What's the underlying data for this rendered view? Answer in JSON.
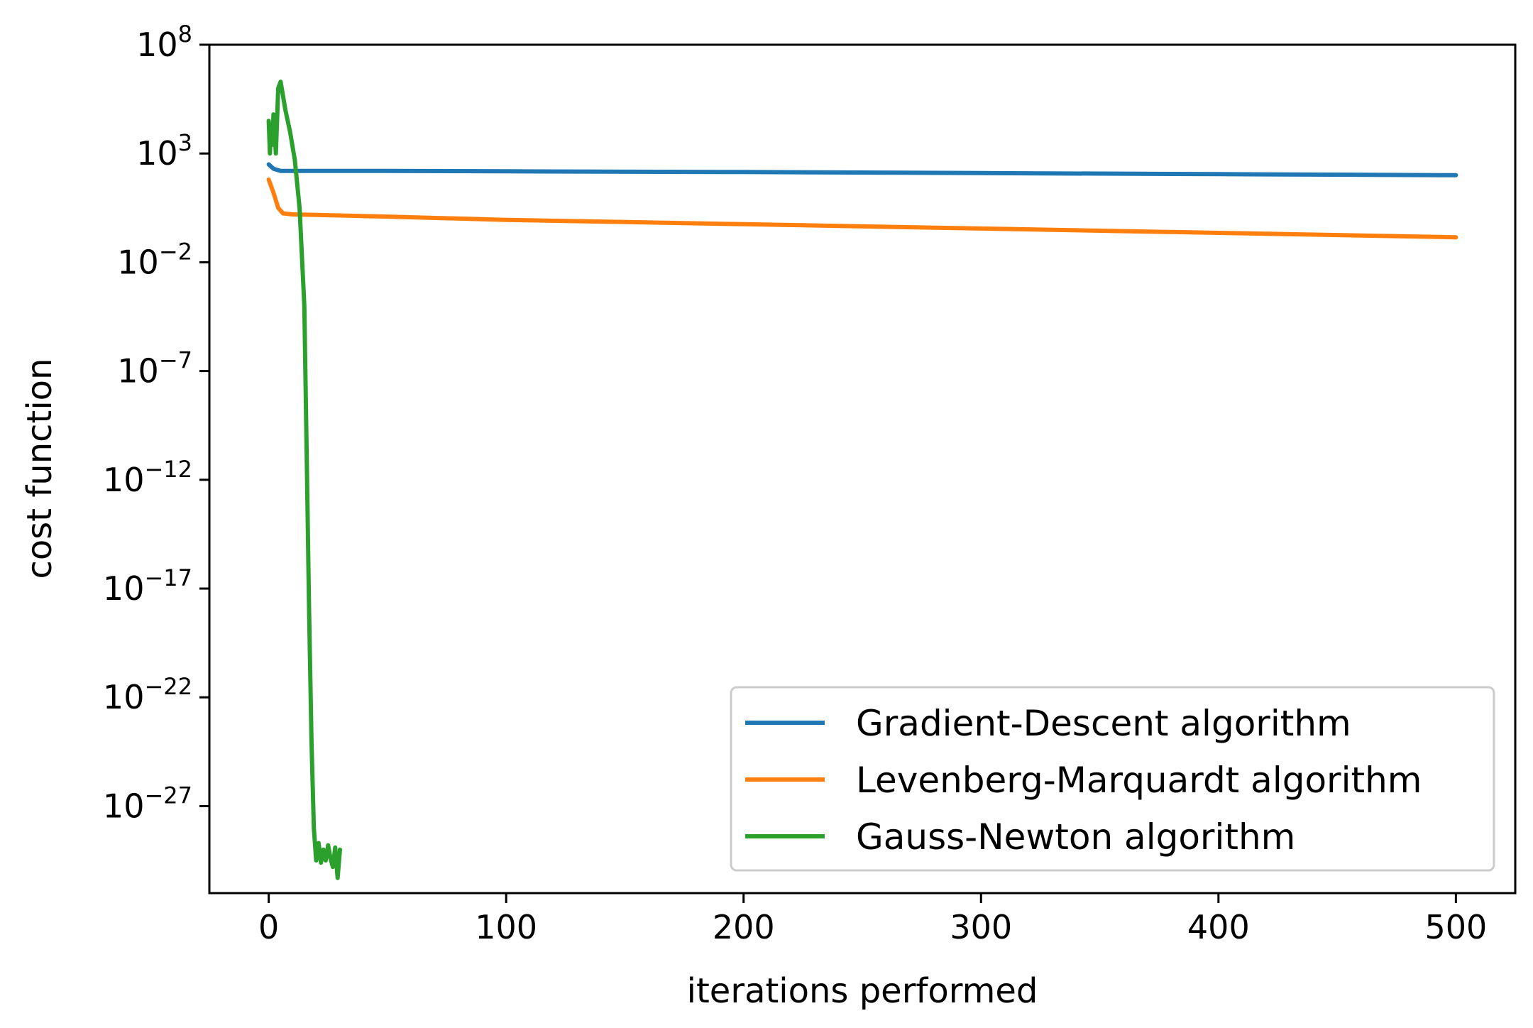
{
  "chart_data": {
    "type": "line",
    "xlabel": "iterations performed",
    "ylabel": "cost function",
    "y_scale": "log",
    "xlim": [
      -25,
      525
    ],
    "ylim_exp": [
      8,
      -31
    ],
    "x_ticks": [
      0,
      100,
      200,
      300,
      400,
      500
    ],
    "y_ticks": [
      {
        "exp": 8,
        "label": "10",
        "sup": "8"
      },
      {
        "exp": 3,
        "label": "10",
        "sup": "3"
      },
      {
        "exp": -2,
        "label": "10",
        "sup": "−2"
      },
      {
        "exp": -7,
        "label": "10",
        "sup": "−7"
      },
      {
        "exp": -12,
        "label": "10",
        "sup": "−12"
      },
      {
        "exp": -17,
        "label": "10",
        "sup": "−17"
      },
      {
        "exp": -22,
        "label": "10",
        "sup": "−22"
      },
      {
        "exp": -27,
        "label": "10",
        "sup": "−27"
      }
    ],
    "grid": false,
    "legend_position": "lower-right",
    "series": [
      {
        "name": "Gradient-Descent algorithm",
        "color": "#1f77b4",
        "x": [
          0,
          2,
          5,
          50,
          100,
          200,
          300,
          400,
          500
        ],
        "log10_y": [
          2.5,
          2.3,
          2.2,
          2.2,
          2.18,
          2.15,
          2.1,
          2.05,
          2.0
        ]
      },
      {
        "name": "Levenberg-Marquardt algorithm",
        "color": "#ff7f0e",
        "x": [
          0,
          2,
          4,
          6,
          10,
          30,
          50,
          100,
          200,
          300,
          400,
          500
        ],
        "log10_y": [
          1.8,
          1.2,
          0.5,
          0.25,
          0.2,
          0.15,
          0.1,
          -0.05,
          -0.25,
          -0.45,
          -0.65,
          -0.85
        ]
      },
      {
        "name": "Gauss-Newton algorithm",
        "color": "#2ca02c",
        "x": [
          0,
          0.5,
          1,
          1.5,
          2,
          3,
          4,
          5,
          7,
          9,
          11,
          13,
          15,
          16,
          17,
          18,
          19,
          20,
          21,
          22,
          23,
          24,
          25,
          26,
          27,
          28,
          29,
          30
        ],
        "log10_y": [
          4.5,
          3.0,
          4.3,
          3.4,
          4.8,
          3.0,
          6.0,
          6.3,
          5.0,
          4.0,
          2.7,
          0.5,
          -4.0,
          -11.0,
          -18.0,
          -24.0,
          -28.0,
          -29.5,
          -28.7,
          -29.6,
          -29.0,
          -29.5,
          -28.8,
          -29.4,
          -29.8,
          -28.9,
          -30.3,
          -29.0
        ]
      }
    ]
  }
}
